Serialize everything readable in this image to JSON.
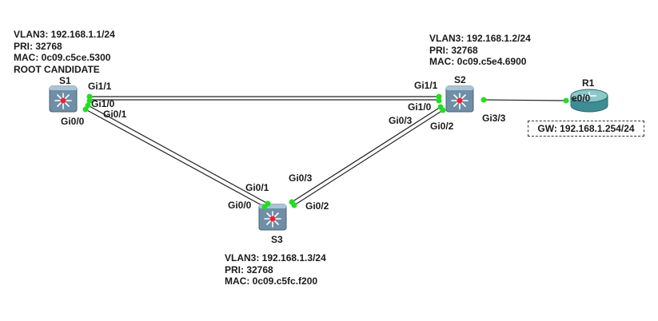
{
  "devices": {
    "s1": {
      "name": "S1",
      "info": [
        "VLAN3: 192.168.1.1/24",
        "PRI: 32768",
        "MAC: 0c09.c5ce.5300",
        "ROOT CANDIDATE"
      ]
    },
    "s2": {
      "name": "S2",
      "info": [
        "VLAN3: 192.168.1.2/24",
        "PRI: 32768",
        "MAC: 0c09.c5e4.6900"
      ]
    },
    "s3": {
      "name": "S3",
      "info": [
        "VLAN3: 192.168.1.3/24",
        "PRI: 32768",
        "MAC: 0c09.c5fc.f200"
      ]
    },
    "r1": {
      "name": "R1",
      "gw": "GW: 192.168.1.254/24"
    }
  },
  "ports": {
    "s1_gi1_1": "Gi1/1",
    "s1_gi1_0": "Gi1/0",
    "s1_gi0_1": "Gi0/1",
    "s1_gi0_0": "Gi0/0",
    "s2_gi1_1": "Gi1/1",
    "s2_gi1_0": "Gi1/0",
    "s2_gi0_3": "Gi0/3",
    "s2_gi0_2": "Gi0/2",
    "s2_gi3_3": "Gi3/3",
    "s3_gi0_3": "Gi0/3",
    "s3_gi0_1": "Gi0/1",
    "s3_gi0_0": "Gi0/0",
    "s3_gi0_2": "Gi0/2",
    "r1_e0_0": "e0/0"
  },
  "colors": {
    "link": "#222222",
    "port_dot": "#22dd22",
    "switch_body": "#6f8fa6",
    "switch_top": "#a9c4d6",
    "router_body": "#3e8d94",
    "router_top": "#8cc7c9",
    "center_dot": "#ee2233"
  }
}
